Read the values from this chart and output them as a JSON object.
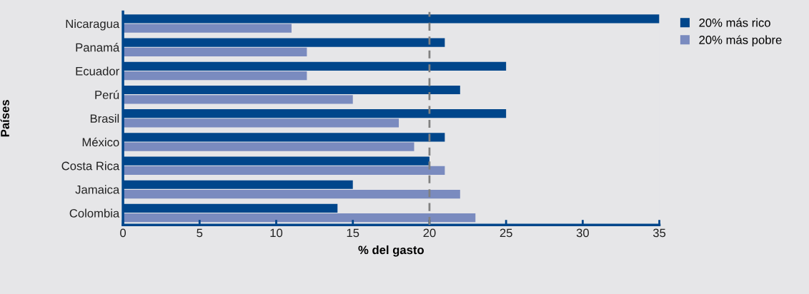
{
  "chart_data": {
    "type": "bar",
    "orientation": "horizontal",
    "xlabel": "% del gasto",
    "ylabel": "Países",
    "categories": [
      "Nicaragua",
      "Panamá",
      "Ecuador",
      "Perú",
      "Brasil",
      "México",
      "Costa Rica",
      "Jamaica",
      "Colombia"
    ],
    "series": [
      {
        "name": "20% más rico",
        "color": "#00468b",
        "values": [
          35,
          21,
          25,
          22,
          25,
          21,
          20,
          15,
          14
        ]
      },
      {
        "name": "20% más pobre",
        "color": "#7a8bbf",
        "values": [
          11,
          12,
          12,
          15,
          18,
          19,
          21,
          22,
          23
        ]
      }
    ],
    "xlim": [
      0,
      35
    ],
    "xticks": [
      0,
      5,
      10,
      15,
      20,
      25,
      30,
      35
    ],
    "grid": false,
    "legend": "top right",
    "ref_lines": [
      {
        "axis": "x",
        "value": 20,
        "color": "#808080",
        "line_style": "dashed"
      }
    ]
  }
}
